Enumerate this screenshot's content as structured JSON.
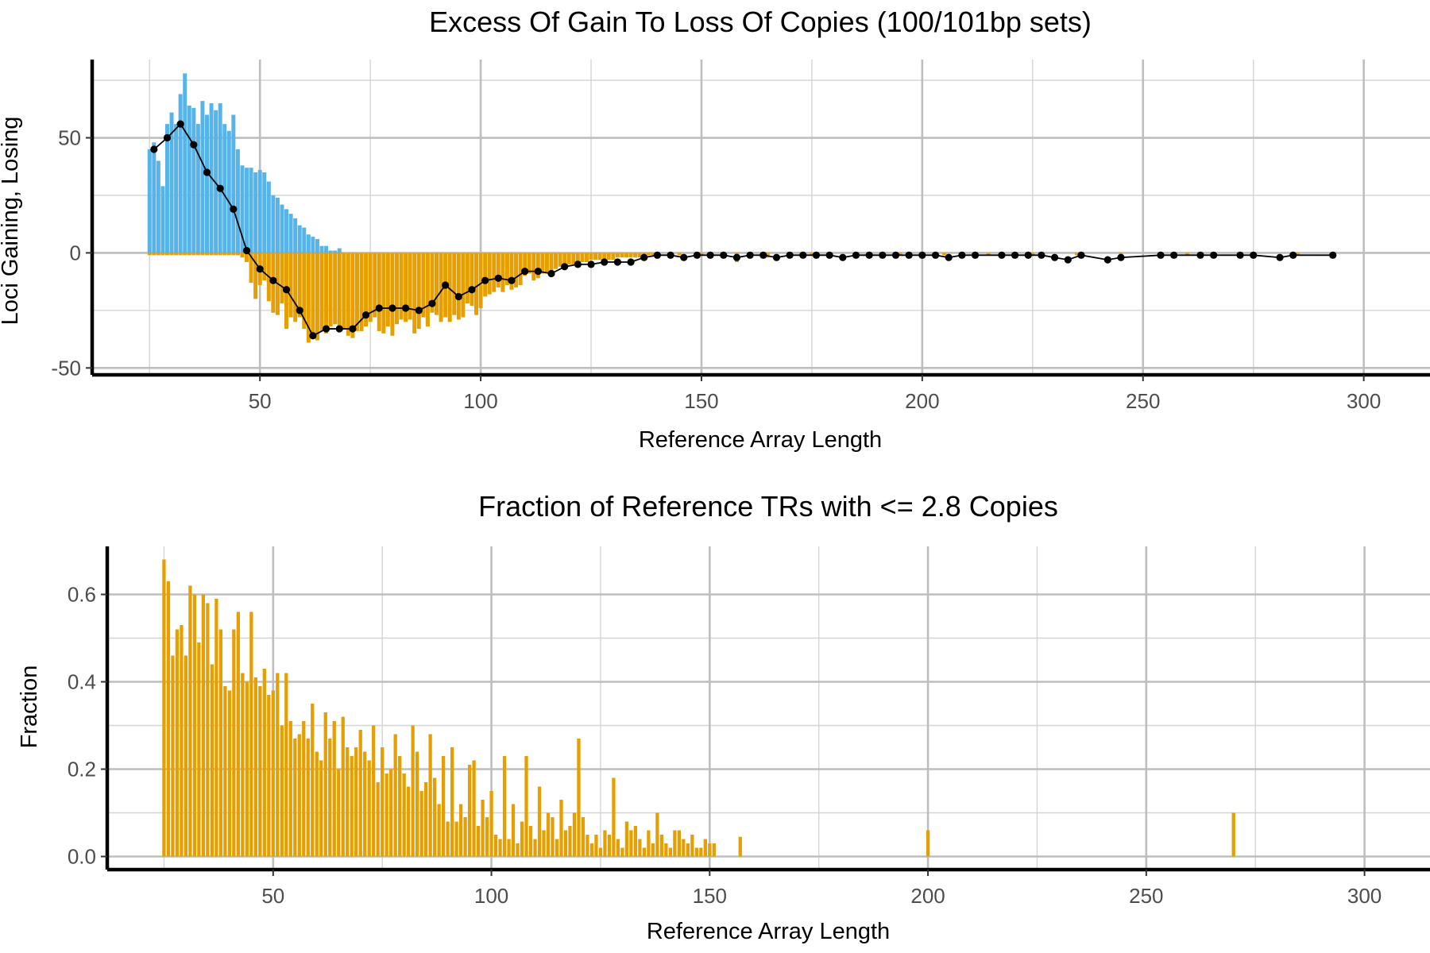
{
  "colors": {
    "gain": "#56b4e9",
    "loss": "#e69f00",
    "frac": "#e69f00",
    "line": "#000000"
  },
  "chart_data": [
    {
      "type": "bar",
      "title": "Excess Of Gain To Loss Of Copies (100/101bp sets)",
      "xlabel": "Reference Array Length",
      "ylabel": "Loci Gaining, Losing",
      "xlim": [
        12,
        315
      ],
      "ylim": [
        -53,
        84
      ],
      "xticks": [
        "50",
        "100",
        "150",
        "200",
        "250",
        "300"
      ],
      "yticks": [
        "50",
        "0",
        "-50"
      ],
      "grid": true,
      "series": [
        {
          "kind": "bar-up",
          "x": [
            25,
            26,
            27,
            28,
            29,
            30,
            31,
            32,
            33,
            34,
            35,
            36,
            37,
            38,
            39,
            40,
            41,
            42,
            43,
            44,
            45,
            46,
            47,
            48,
            49,
            50,
            51,
            52,
            53,
            54,
            55,
            56,
            57,
            58,
            59,
            60,
            61,
            62,
            63,
            64,
            65,
            66,
            67,
            68
          ],
          "values": [
            45,
            48,
            40,
            29,
            56,
            61,
            56,
            69,
            78,
            64,
            63,
            56,
            66,
            60,
            65,
            62,
            65,
            56,
            53,
            60,
            45,
            38,
            37,
            37,
            35,
            36,
            35,
            31,
            25,
            24,
            21,
            19,
            17,
            15,
            12,
            11,
            8,
            7,
            6,
            3,
            3,
            1,
            1,
            2
          ]
        },
        {
          "kind": "bar-down",
          "x": [
            25,
            26,
            27,
            28,
            29,
            30,
            31,
            32,
            33,
            34,
            35,
            36,
            37,
            38,
            39,
            40,
            41,
            42,
            43,
            44,
            45,
            46,
            47,
            48,
            49,
            50,
            51,
            52,
            53,
            54,
            55,
            56,
            57,
            58,
            59,
            60,
            61,
            62,
            63,
            64,
            65,
            66,
            67,
            68,
            69,
            70,
            71,
            72,
            73,
            74,
            75,
            76,
            77,
            78,
            79,
            80,
            81,
            82,
            83,
            84,
            85,
            86,
            87,
            88,
            89,
            90,
            91,
            92,
            93,
            94,
            95,
            96,
            97,
            98,
            99,
            100,
            101,
            102,
            103,
            104,
            105,
            106,
            107,
            108,
            109,
            110,
            111,
            112,
            113,
            114,
            115,
            116,
            117,
            118,
            119,
            120,
            121,
            122,
            123,
            124,
            125,
            126,
            127,
            128,
            129,
            130,
            131,
            132,
            133,
            134,
            135,
            136,
            137,
            138,
            139,
            140,
            145,
            150,
            155,
            158,
            165,
            175,
            185,
            195,
            205,
            215,
            225,
            235,
            245,
            260,
            275,
            285
          ],
          "values": [
            -1,
            -1,
            -1,
            -1,
            -1,
            -1,
            -1,
            -1,
            -1,
            -1,
            -1,
            -1,
            -1,
            -1,
            -1,
            -1,
            -1,
            -1,
            -1,
            -1,
            -1,
            -2,
            -4,
            -13,
            -20,
            -14,
            -12,
            -21,
            -26,
            -27,
            -22,
            -33,
            -28,
            -30,
            -28,
            -33,
            -39,
            -36,
            -38,
            -34,
            -35,
            -32,
            -31,
            -34,
            -33,
            -36,
            -37,
            -34,
            -34,
            -32,
            -30,
            -28,
            -34,
            -35,
            -32,
            -36,
            -31,
            -29,
            -30,
            -29,
            -35,
            -33,
            -28,
            -32,
            -26,
            -27,
            -30,
            -28,
            -30,
            -27,
            -29,
            -28,
            -22,
            -23,
            -27,
            -24,
            -19,
            -18,
            -17,
            -15,
            -17,
            -14,
            -16,
            -15,
            -14,
            -10,
            -9,
            -12,
            -11,
            -9,
            -9,
            -8,
            -7,
            -6,
            -6,
            -5,
            -5,
            -5,
            -4,
            -4,
            -3,
            -3,
            -3,
            -3,
            -3,
            -3,
            -2,
            -2,
            -2,
            -2,
            -2,
            -2,
            -1,
            -1,
            -1,
            -1,
            -1,
            -1,
            -1,
            -4,
            -2,
            -1,
            -1,
            -1,
            -1,
            -1,
            -1,
            -1,
            -1,
            -1,
            -1,
            -1
          ],
          "opacity": 1
        },
        {
          "kind": "line",
          "x": [
            26,
            29,
            32,
            35,
            38,
            41,
            44,
            47,
            50,
            53,
            56,
            59,
            62,
            65,
            68,
            71,
            74,
            77,
            80,
            83,
            86,
            89,
            92,
            95,
            98,
            101,
            104,
            107,
            110,
            113,
            116,
            119,
            122,
            125,
            128,
            131,
            134,
            137,
            140,
            143,
            146,
            149,
            152,
            155,
            158,
            161,
            164,
            167,
            170,
            173,
            176,
            179,
            182,
            185,
            188,
            191,
            194,
            197,
            200,
            203,
            206,
            209,
            212,
            218,
            221,
            224,
            227,
            230,
            233,
            236,
            242,
            245,
            254,
            257,
            263,
            266,
            272,
            275,
            281,
            284,
            293
          ],
          "values": [
            45,
            50,
            56,
            47,
            35,
            28,
            19,
            1,
            -7,
            -12,
            -16,
            -25,
            -36,
            -33,
            -33,
            -33,
            -27,
            -24,
            -24,
            -24,
            -25,
            -22,
            -14,
            -19,
            -16,
            -12,
            -11,
            -12,
            -8,
            -8,
            -9,
            -6,
            -5,
            -5,
            -4,
            -4,
            -4,
            -2,
            -1,
            -1,
            -2,
            -1,
            -1,
            -1,
            -2,
            -1,
            -1,
            -2,
            -1,
            -1,
            -1,
            -1,
            -2,
            -1,
            -1,
            -1,
            -1,
            -1,
            -1,
            -1,
            -2,
            -1,
            -1,
            -1,
            -1,
            -1,
            -1,
            -2,
            -3,
            -1,
            -3,
            -2,
            -1,
            -1,
            -1,
            -1,
            -1,
            -1,
            -2,
            -1,
            -1
          ]
        }
      ]
    },
    {
      "type": "bar",
      "title": "Fraction of Reference TRs with <= 2.8 Copies",
      "xlabel": "Reference Array Length",
      "ylabel": "Fraction",
      "xlim": [
        12,
        315
      ],
      "ylim": [
        -0.03,
        0.71
      ],
      "xticks": [
        "50",
        "100",
        "150",
        "200",
        "250",
        "300"
      ],
      "yticks": [
        "0.0",
        "0.2",
        "0.4",
        "0.6"
      ],
      "grid": true,
      "x": [
        25,
        26,
        27,
        28,
        29,
        30,
        31,
        32,
        33,
        34,
        35,
        36,
        37,
        38,
        39,
        40,
        41,
        42,
        43,
        44,
        45,
        46,
        47,
        48,
        49,
        50,
        51,
        52,
        53,
        54,
        55,
        56,
        57,
        58,
        59,
        60,
        61,
        62,
        63,
        64,
        65,
        66,
        67,
        68,
        69,
        70,
        71,
        72,
        73,
        74,
        75,
        76,
        77,
        78,
        79,
        80,
        81,
        82,
        83,
        84,
        85,
        86,
        87,
        88,
        89,
        90,
        91,
        92,
        93,
        94,
        95,
        96,
        97,
        98,
        99,
        100,
        101,
        102,
        103,
        104,
        105,
        106,
        107,
        108,
        109,
        110,
        111,
        112,
        113,
        114,
        115,
        116,
        117,
        118,
        119,
        120,
        121,
        122,
        123,
        124,
        125,
        126,
        127,
        128,
        129,
        130,
        131,
        132,
        133,
        134,
        135,
        136,
        137,
        138,
        139,
        140,
        141,
        142,
        143,
        144,
        145,
        146,
        147,
        148,
        149,
        150,
        151,
        157,
        200,
        270
      ],
      "values": [
        0.68,
        0.63,
        0.46,
        0.52,
        0.53,
        0.46,
        0.62,
        0.6,
        0.49,
        0.6,
        0.58,
        0.44,
        0.59,
        0.52,
        0.39,
        0.38,
        0.52,
        0.56,
        0.42,
        0.4,
        0.56,
        0.41,
        0.39,
        0.43,
        0.37,
        0.38,
        0.42,
        0.3,
        0.42,
        0.31,
        0.27,
        0.28,
        0.31,
        0.27,
        0.35,
        0.24,
        0.22,
        0.33,
        0.27,
        0.31,
        0.2,
        0.32,
        0.25,
        0.23,
        0.25,
        0.29,
        0.24,
        0.22,
        0.3,
        0.17,
        0.25,
        0.19,
        0.2,
        0.28,
        0.23,
        0.19,
        0.16,
        0.3,
        0.24,
        0.15,
        0.17,
        0.28,
        0.18,
        0.12,
        0.23,
        0.08,
        0.25,
        0.08,
        0.12,
        0.09,
        0.21,
        0.22,
        0.07,
        0.13,
        0.09,
        0.15,
        0.05,
        0.04,
        0.23,
        0.04,
        0.12,
        0.03,
        0.08,
        0.23,
        0.07,
        0.04,
        0.16,
        0.06,
        0.1,
        0.09,
        0.04,
        0.13,
        0.06,
        0.07,
        0.1,
        0.27,
        0.09,
        0.05,
        0.03,
        0.05,
        0.02,
        0.06,
        0.05,
        0.18,
        0.04,
        0.02,
        0.08,
        0.06,
        0.07,
        0.04,
        0.02,
        0.06,
        0.03,
        0.1,
        0.05,
        0.03,
        0.02,
        0.06,
        0.06,
        0.04,
        0.03,
        0.05,
        0.02,
        0.02,
        0.04,
        0.03,
        0.03,
        0.045,
        0.06,
        0.1
      ]
    }
  ]
}
